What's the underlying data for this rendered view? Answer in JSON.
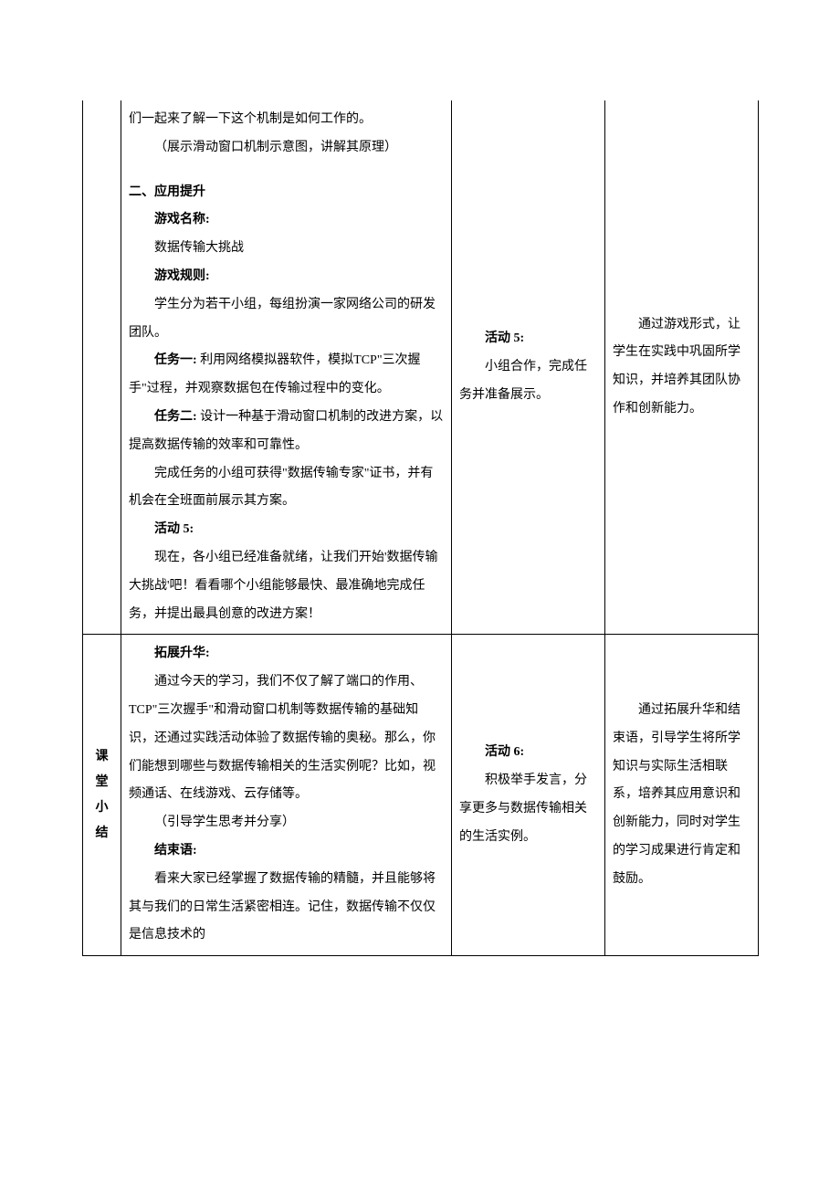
{
  "row1": {
    "main": {
      "p1": "们一起来了解一下这个机制是如何工作的。",
      "p2": "（展示滑动窗口机制示意图，讲解其原理）",
      "heading": "二、应用提升",
      "game_name_label": "游戏名称:",
      "game_name": "数据传输大挑战",
      "rules_label": "游戏规则:",
      "rules": "学生分为若干小组，每组扮演一家网络公司的研发团队。",
      "task1_label": "任务一:",
      "task1": " 利用网络模拟器软件，模拟TCP\"三次握手\"过程，并观察数据包在传输过程中的变化。",
      "task2_label": "任务二:",
      "task2": " 设计一种基于滑动窗口机制的改进方案，以提高数据传输的效率和可靠性。",
      "reward": "完成任务的小组可获得\"数据传输专家\"证书，并有机会在全班面前展示其方案。",
      "act5_label": "活动 5:",
      "act5": "现在，各小组已经准备就绪，让我们开始'数据传输大挑战'吧！看看哪个小组能够最快、最准确地完成任务，并提出最具创意的改进方案！"
    },
    "activity": {
      "title": "活动 5:",
      "body": "小组合作，完成任务并准备展示。"
    },
    "note": "通过游戏形式，让学生在实践中巩固所学知识，并培养其团队协作和创新能力。"
  },
  "row2": {
    "label": "课堂小结",
    "main": {
      "expand_label": "拓展升华:",
      "expand": "通过今天的学习，我们不仅了解了端口的作用、TCP\"三次握手\"和滑动窗口机制等数据传输的基础知识，还通过实践活动体验了数据传输的奥秘。那么，你们能想到哪些与数据传输相关的生活实例呢？比如，视频通话、在线游戏、云存储等。",
      "guide": "（引导学生思考并分享）",
      "end_label": "结束语:",
      "end": "看来大家已经掌握了数据传输的精髓，并且能够将其与我们的日常生活紧密相连。记住，数据传输不仅仅是信息技术的"
    },
    "activity": {
      "title": "活动 6:",
      "body": "积极举手发言，分享更多与数据传输相关的生活实例。"
    },
    "note": "通过拓展升华和结束语，引导学生将所学知识与实际生活相联系，培养其应用意识和创新能力，同时对学生的学习成果进行肯定和鼓励。"
  }
}
